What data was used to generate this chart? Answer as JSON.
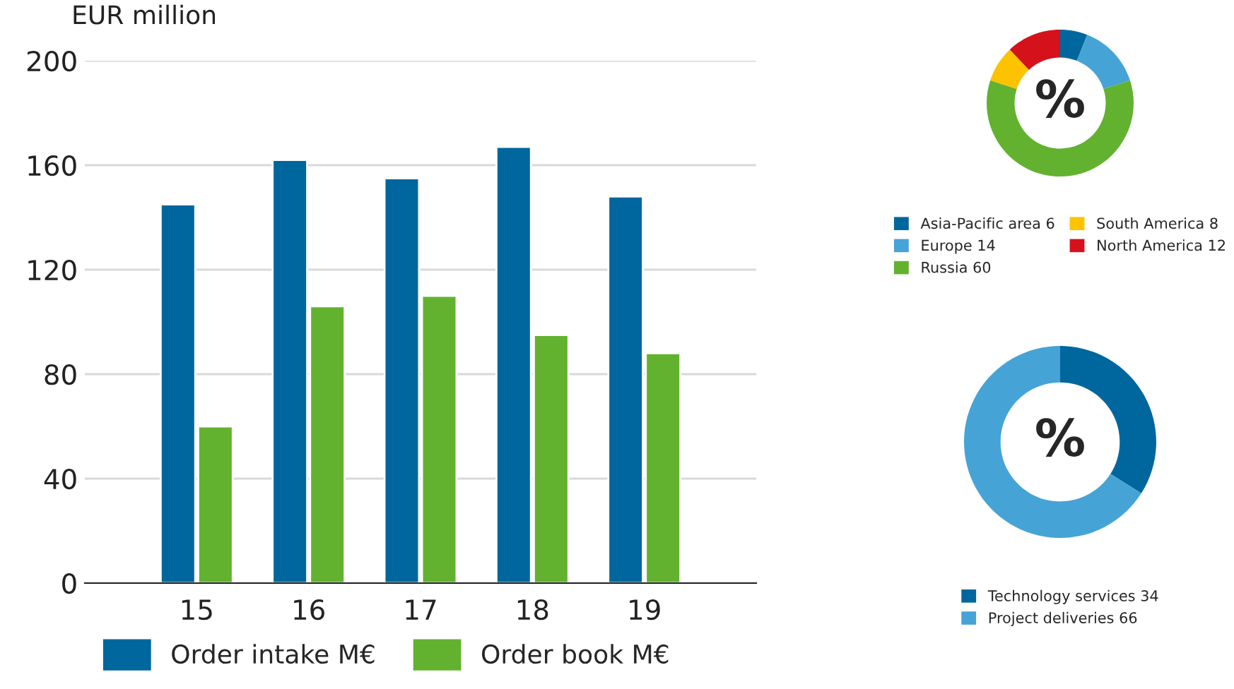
{
  "chart_data": [
    {
      "type": "bar",
      "ylabel": "EUR million",
      "categories": [
        "15",
        "16",
        "17",
        "18",
        "19"
      ],
      "series": [
        {
          "name": "Order intake M€",
          "color": "#00679e",
          "values": [
            145,
            162,
            155,
            167,
            148
          ]
        },
        {
          "name": "Order book M€",
          "color": "#62b22f",
          "values": [
            60,
            106,
            110,
            95,
            88
          ]
        }
      ],
      "ylim": [
        0,
        200
      ],
      "yticks": [
        0,
        40,
        80,
        120,
        160,
        200
      ],
      "grid": "y",
      "legend": "bottom"
    },
    {
      "type": "donut",
      "categories": [
        "Asia-Pacific area",
        "Europe",
        "Russia",
        "South America",
        "North America"
      ],
      "values": [
        6,
        14,
        60,
        8,
        12
      ],
      "colors": [
        "#00679e",
        "#46a3d6",
        "#62b22f",
        "#fdc300",
        "#d5121b"
      ],
      "value_labels": [
        "6",
        "14",
        "60",
        "8",
        "12"
      ],
      "annotations": [
        "%"
      ],
      "legend": "bottom"
    },
    {
      "type": "donut",
      "categories": [
        "Technology services",
        "Project deliveries"
      ],
      "values": [
        34,
        66
      ],
      "colors": [
        "#00679e",
        "#46a3d6"
      ],
      "value_labels": [
        "34",
        "66"
      ],
      "annotations": [
        "%"
      ],
      "legend": "bottom"
    }
  ]
}
